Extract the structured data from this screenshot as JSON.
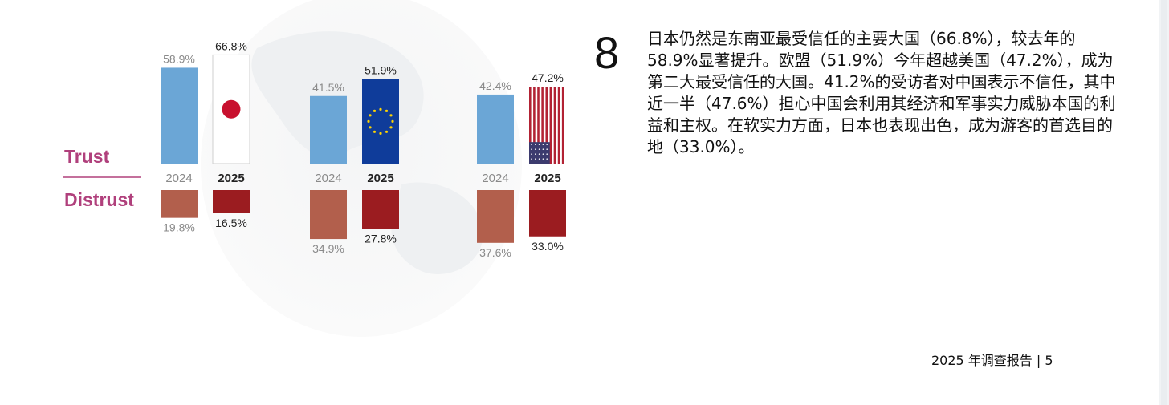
{
  "chart_data": {
    "type": "bar",
    "legend": {
      "trust": "Trust",
      "distrust": "Distrust"
    },
    "categories": [
      "2024",
      "2025"
    ],
    "groups": [
      {
        "flag": "japan-flag",
        "trust": [
          58.9,
          66.8
        ],
        "distrust": [
          19.8,
          16.5
        ],
        "trust_labels": [
          "58.9%",
          "66.8%"
        ],
        "distrust_labels": [
          "19.8%",
          "16.5%"
        ]
      },
      {
        "flag": "eu-flag",
        "trust": [
          41.5,
          51.9
        ],
        "distrust": [
          34.9,
          27.8
        ],
        "trust_labels": [
          "41.5%",
          "51.9%"
        ],
        "distrust_labels": [
          "34.9%",
          "27.8%"
        ]
      },
      {
        "flag": "us-flag",
        "trust": [
          42.4,
          47.2
        ],
        "distrust": [
          37.6,
          33.0
        ],
        "trust_labels": [
          "42.4%",
          "47.2%"
        ],
        "distrust_labels": [
          "37.6%",
          "33.0%"
        ]
      }
    ],
    "colors": {
      "trust_2024": "#6ba6d6",
      "distrust_2024": "#b25f4c",
      "distrust_2025": "#9b1c20",
      "eu_blue": "#0f3c9a",
      "japan_red": "#c8102e",
      "us_red": "#b22234",
      "us_blue": "#3c3b6e",
      "trust_text": "#b0407c"
    }
  },
  "finding": {
    "number": "8",
    "text": "日本仍然是东南亚最受信任的主要大国（66.8%），较去年的 58.9%显著提升。欧盟（51.9%）今年超越美国（47.2%），成为第二大最受信任的大国。41.2%的受访者对中国表示不信任，其中近一半（47.6%）担心中国会利用其经济和军事实力威胁本国的利益和主权。在软实力方面，日本也表现出色，成为游客的首选目的地（33.0%）。"
  },
  "footer": {
    "text": "2025 年调查报告 | 5"
  }
}
